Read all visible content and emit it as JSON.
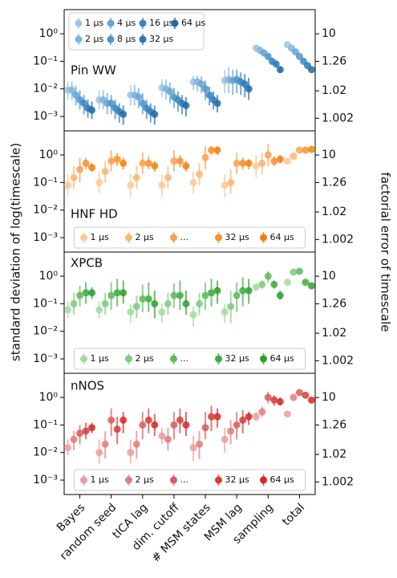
{
  "chart_data": [
    {
      "type": "errorbar",
      "title": "Pin WW",
      "ylabel": "standard deviation of log(timescale)",
      "y2label": "factorial error of timescale",
      "log_y": true,
      "y2scale": "loglog",
      "legend": "upper left",
      "ylim": [
        0.0003,
        7.5
      ],
      "yticks": [
        {
          "value": 1,
          "label": "10⁰"
        },
        {
          "value": 0.1,
          "label": "10⁻¹"
        },
        {
          "value": 0.01,
          "label": "10⁻²"
        },
        {
          "value": 0.001,
          "label": "10⁻³"
        }
      ],
      "y2lim": [
        1.0007,
        31622777
      ],
      "y2ticks": [
        10,
        1.26,
        1.02,
        1.002
      ],
      "series": [
        {
          "name": "1 μs",
          "color": "#9cc5e3",
          "values": [
            0.009,
            0.004,
            0.006,
            0.011,
            0.018,
            0.02,
            0.3,
            0.4
          ],
          "lower": [
            0.004,
            0.0018,
            0.0025,
            0.005,
            0.009,
            0.007,
            0.22,
            null
          ],
          "upper": [
            0.018,
            0.009,
            0.014,
            0.022,
            0.03,
            0.05,
            0.4,
            null
          ]
        },
        {
          "name": "2 μs",
          "color": "#80b4dc",
          "values": [
            0.009,
            0.004,
            0.006,
            0.01,
            0.018,
            0.022,
            0.25,
            0.3
          ],
          "lower": [
            0.004,
            0.0018,
            0.0025,
            0.004,
            0.008,
            0.007,
            0.18,
            null
          ],
          "upper": [
            0.018,
            0.009,
            0.014,
            0.022,
            0.03,
            0.06,
            0.33,
            null
          ]
        },
        {
          "name": "4 μs",
          "color": "#66a4d4",
          "values": [
            0.006,
            0.003,
            0.005,
            0.008,
            0.015,
            0.02,
            0.2,
            0.22
          ],
          "lower": [
            0.0025,
            0.0012,
            0.002,
            0.003,
            0.007,
            0.006,
            0.15,
            null
          ],
          "upper": [
            0.013,
            0.007,
            0.011,
            0.017,
            0.028,
            0.05,
            0.27,
            null
          ]
        },
        {
          "name": "8 μs",
          "color": "#4f95cb",
          "values": [
            0.004,
            0.003,
            0.003,
            0.005,
            0.01,
            0.022,
            0.15,
            0.15
          ],
          "lower": [
            0.0018,
            0.0012,
            0.0012,
            0.002,
            0.004,
            0.007,
            0.11,
            null
          ],
          "upper": [
            0.009,
            0.006,
            0.007,
            0.011,
            0.02,
            0.05,
            0.2,
            null
          ]
        },
        {
          "name": "16 μs",
          "color": "#3a86c1",
          "values": [
            0.003,
            0.002,
            0.002,
            0.004,
            0.006,
            0.018,
            0.1,
            0.1
          ],
          "lower": [
            0.0012,
            0.0008,
            0.0008,
            0.0015,
            0.0025,
            0.006,
            0.075,
            null
          ],
          "upper": [
            0.006,
            0.004,
            0.004,
            0.008,
            0.012,
            0.04,
            0.13,
            null
          ]
        },
        {
          "name": "32 μs",
          "color": "#2a79b6",
          "values": [
            0.002,
            0.0015,
            0.0015,
            0.003,
            0.004,
            0.015,
            0.08,
            0.07
          ],
          "lower": [
            0.0009,
            0.0006,
            0.0006,
            0.0012,
            0.0018,
            0.005,
            0.06,
            null
          ],
          "upper": [
            0.004,
            0.003,
            0.003,
            0.006,
            0.008,
            0.035,
            0.1,
            null
          ]
        },
        {
          "name": "64 μs",
          "color": "#1f6aa8",
          "values": [
            0.0017,
            0.0012,
            0.0012,
            0.0025,
            0.003,
            0.01,
            0.05,
            0.05
          ],
          "lower": [
            0.0008,
            0.0005,
            0.0005,
            0.001,
            0.0014,
            0.004,
            0.038,
            null
          ],
          "upper": [
            0.0035,
            0.0025,
            0.0025,
            0.005,
            0.006,
            0.025,
            0.065,
            null
          ]
        }
      ]
    },
    {
      "type": "errorbar",
      "title": "HNF HD",
      "log_y": true,
      "y2scale": "loglog",
      "legend": "lower center",
      "ylim": [
        0.0003,
        7.5
      ],
      "yticks": [
        {
          "value": 1,
          "label": "10⁰"
        },
        {
          "value": 0.1,
          "label": "10⁻¹"
        },
        {
          "value": 0.01,
          "label": "10⁻²"
        },
        {
          "value": 0.001,
          "label": "10⁻³"
        }
      ],
      "y2lim": [
        1.0007,
        31622777
      ],
      "y2ticks": [
        10,
        1.26,
        1.02,
        1.002
      ],
      "series": [
        {
          "name": "1 μs",
          "color": "#fcc896",
          "values": [
            0.08,
            0.1,
            0.08,
            0.08,
            0.1,
            0.08,
            0.4,
            0.6
          ],
          "lower": [
            0.03,
            0.04,
            0.03,
            0.03,
            0.04,
            0.03,
            0.15,
            null
          ],
          "upper": [
            0.2,
            0.25,
            0.2,
            0.2,
            0.25,
            0.2,
            1.0,
            null
          ]
        },
        {
          "name": "2 μs",
          "color": "#fbb474",
          "values": [
            0.15,
            0.25,
            0.15,
            0.15,
            0.2,
            0.1,
            0.5,
            0.9
          ],
          "lower": [
            0.06,
            0.1,
            0.06,
            0.06,
            0.08,
            0.04,
            0.2,
            null
          ],
          "upper": [
            0.4,
            0.6,
            0.4,
            0.4,
            0.5,
            0.3,
            1.2,
            null
          ]
        },
        {
          "name": "...",
          "color": "#f9a150",
          "values": [
            0.3,
            0.6,
            0.5,
            0.6,
            0.8,
            0.5,
            1.0,
            1.5
          ],
          "lower": [
            0.1,
            0.25,
            0.2,
            0.25,
            0.3,
            0.2,
            0.4,
            null
          ],
          "upper": [
            0.8,
            1.5,
            1.2,
            1.5,
            2,
            1.2,
            2.5,
            null
          ]
        },
        {
          "name": "32 μs",
          "color": "#f8902f",
          "values": [
            0.5,
            0.7,
            0.5,
            0.6,
            1.5,
            0.5,
            0.6,
            1.5
          ],
          "lower": [
            0.3,
            0.4,
            0.3,
            0.35,
            1.0,
            0.3,
            0.4,
            null
          ],
          "upper": [
            0.8,
            1.2,
            0.9,
            1.0,
            2.0,
            0.8,
            0.9,
            null
          ]
        },
        {
          "name": "64 μs",
          "color": "#f57f0e",
          "values": [
            0.35,
            0.5,
            0.4,
            0.4,
            1.5,
            0.5,
            0.7,
            1.6
          ],
          "lower": [
            0.25,
            0.3,
            0.25,
            0.25,
            1.0,
            0.3,
            0.5,
            null
          ],
          "upper": [
            0.5,
            0.8,
            0.6,
            0.6,
            2.0,
            0.7,
            1.0,
            null
          ]
        }
      ]
    },
    {
      "type": "errorbar",
      "title": "XPCB",
      "log_y": true,
      "y2scale": "loglog",
      "legend": "lower center",
      "ylim": [
        0.0003,
        7.5
      ],
      "yticks": [
        {
          "value": 1,
          "label": "10⁰"
        },
        {
          "value": 0.1,
          "label": "10⁻¹"
        },
        {
          "value": 0.01,
          "label": "10⁻²"
        },
        {
          "value": 0.001,
          "label": "10⁻³"
        }
      ],
      "y2lim": [
        1.0007,
        31622777
      ],
      "y2ticks": [
        10,
        1.26,
        1.02,
        1.002
      ],
      "series": [
        {
          "name": "1 μs",
          "color": "#a3d9a3",
          "values": [
            0.06,
            0.06,
            0.05,
            0.05,
            0.04,
            0.05,
            0.4,
            0.6
          ],
          "lower": [
            0.03,
            0.03,
            0.02,
            0.02,
            0.015,
            0.02,
            0.3,
            null
          ],
          "upper": [
            0.12,
            0.12,
            0.1,
            0.1,
            0.08,
            0.1,
            0.55,
            null
          ]
        },
        {
          "name": "2 μs",
          "color": "#80c980",
          "values": [
            0.1,
            0.1,
            0.08,
            0.1,
            0.1,
            0.08,
            0.5,
            1.4
          ],
          "lower": [
            0.04,
            0.04,
            0.03,
            0.04,
            0.04,
            0.02,
            0.35,
            null
          ],
          "upper": [
            0.25,
            0.25,
            0.2,
            0.25,
            0.25,
            0.3,
            0.7,
            null
          ]
        },
        {
          "name": "...",
          "color": "#5fba5f",
          "values": [
            0.2,
            0.2,
            0.15,
            0.2,
            0.2,
            0.2,
            1.0,
            1.5
          ],
          "lower": [
            0.08,
            0.06,
            0.05,
            0.07,
            0.06,
            0.05,
            0.6,
            null
          ],
          "upper": [
            0.45,
            0.6,
            0.5,
            0.55,
            0.6,
            0.6,
            1.5,
            null
          ]
        },
        {
          "name": "32 μs",
          "color": "#3fab3f",
          "values": [
            0.25,
            0.25,
            0.15,
            0.2,
            0.25,
            0.3,
            0.5,
            0.6
          ],
          "lower": [
            0.1,
            0.08,
            0.05,
            0.06,
            0.08,
            0.08,
            0.35,
            null
          ],
          "upper": [
            0.6,
            0.8,
            0.6,
            0.7,
            0.8,
            0.9,
            0.7,
            null
          ]
        },
        {
          "name": "64 μs",
          "color": "#2ca02c",
          "values": [
            0.25,
            0.25,
            0.1,
            0.1,
            0.3,
            0.3,
            0.2,
            0.45
          ],
          "lower": [
            0.15,
            0.1,
            0.03,
            0.04,
            0.1,
            0.1,
            0.14,
            null
          ],
          "upper": [
            0.4,
            0.7,
            0.3,
            0.3,
            0.7,
            0.8,
            0.3,
            null
          ]
        }
      ]
    },
    {
      "type": "errorbar",
      "title": "nNOS",
      "log_y": true,
      "y2scale": "loglog",
      "legend": "lower center",
      "categories": [
        "Bayes",
        "random seed",
        "tICA lag",
        "dim. cutoff",
        "# MSM states",
        "MSM lag",
        "sampling",
        "total"
      ],
      "ylim": [
        0.0003,
        7.5
      ],
      "yticks": [
        {
          "value": 1,
          "label": "10⁰"
        },
        {
          "value": 0.1,
          "label": "10⁻¹"
        },
        {
          "value": 0.01,
          "label": "10⁻²"
        },
        {
          "value": 0.001,
          "label": "10⁻³"
        }
      ],
      "y2lim": [
        1.0007,
        31622777
      ],
      "y2ticks": [
        10,
        1.26,
        1.02,
        1.002
      ],
      "series": [
        {
          "name": "1 μs",
          "color": "#eb9d9d",
          "values": [
            0.015,
            0.01,
            0.01,
            0.04,
            0.015,
            0.03,
            0.2,
            0.25
          ],
          "lower": [
            0.008,
            0.004,
            0.004,
            0.02,
            0.005,
            0.01,
            0.14,
            null
          ],
          "upper": [
            0.03,
            0.03,
            0.03,
            0.08,
            0.04,
            0.08,
            0.3,
            null
          ]
        },
        {
          "name": "2 μs",
          "color": "#e27c7c",
          "values": [
            0.03,
            0.02,
            0.02,
            0.03,
            0.02,
            0.06,
            0.3,
            1.0
          ],
          "lower": [
            0.012,
            0.006,
            0.006,
            0.012,
            0.006,
            0.02,
            0.2,
            null
          ],
          "upper": [
            0.06,
            0.06,
            0.06,
            0.08,
            0.06,
            0.15,
            0.45,
            null
          ]
        },
        {
          "name": "...",
          "color": "#da5c5c",
          "values": [
            0.05,
            0.15,
            0.1,
            0.1,
            0.08,
            0.1,
            1.0,
            1.5
          ],
          "lower": [
            0.02,
            0.04,
            0.03,
            0.03,
            0.03,
            0.03,
            0.6,
            null
          ],
          "upper": [
            0.1,
            0.4,
            0.3,
            0.3,
            0.3,
            0.3,
            1.6,
            null
          ]
        },
        {
          "name": "32 μs",
          "color": "#d43d3d",
          "values": [
            0.06,
            0.07,
            0.15,
            0.15,
            0.2,
            0.15,
            0.8,
            1.2
          ],
          "lower": [
            0.03,
            0.02,
            0.05,
            0.05,
            0.06,
            0.05,
            0.5,
            null
          ],
          "upper": [
            0.12,
            0.2,
            0.4,
            0.4,
            0.5,
            0.35,
            1.2,
            null
          ]
        },
        {
          "name": "64 μs",
          "color": "#d62728",
          "values": [
            0.08,
            0.15,
            0.1,
            0.1,
            0.2,
            0.2,
            0.7,
            0.8
          ],
          "lower": [
            0.05,
            0.05,
            0.04,
            0.04,
            0.08,
            0.1,
            0.5,
            null
          ],
          "upper": [
            0.12,
            0.3,
            0.25,
            0.3,
            0.4,
            0.3,
            1.0,
            null
          ]
        }
      ]
    }
  ]
}
